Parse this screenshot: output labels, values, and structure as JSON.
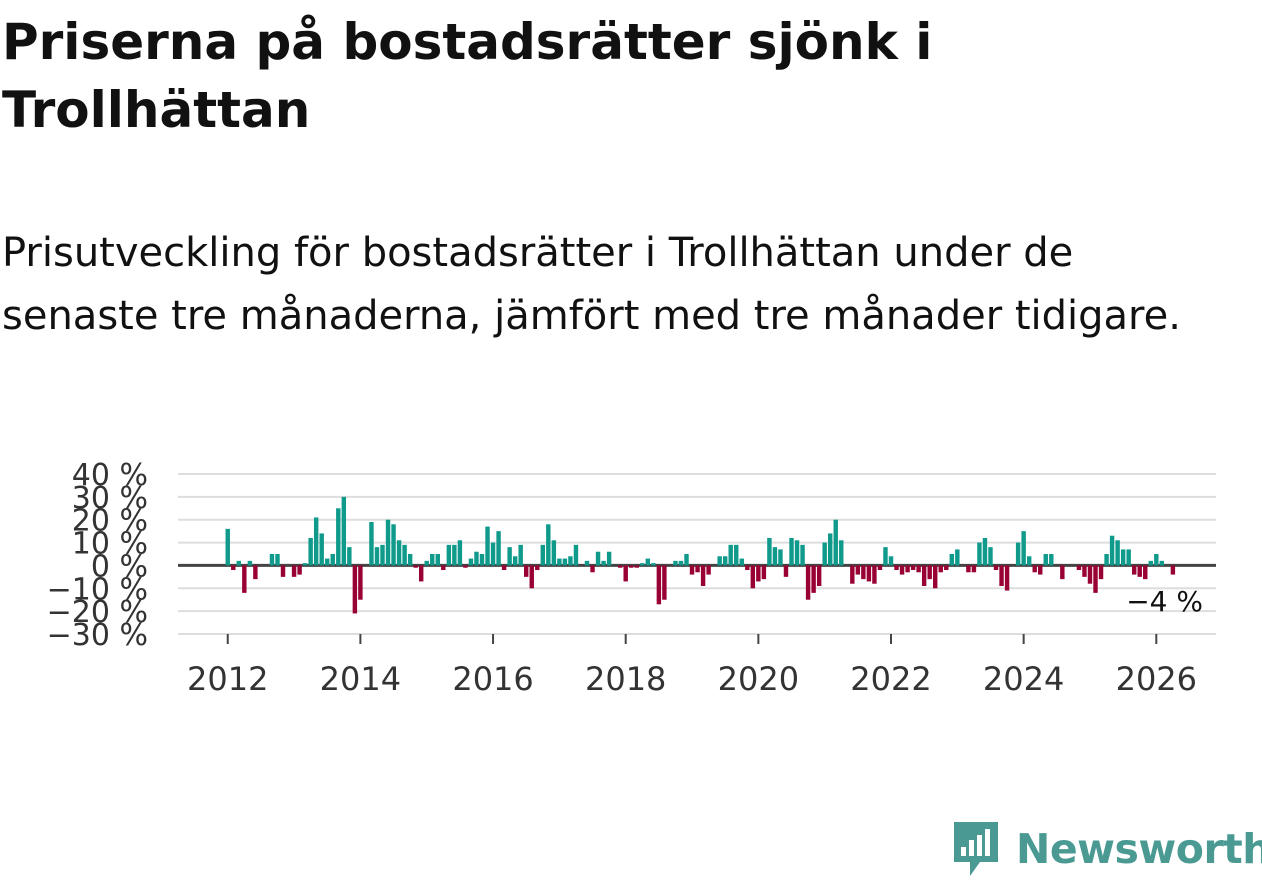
{
  "title": "Priserna på bostadsrätter sjönk i Trollhättan",
  "subtitle": "Prisutveckling för bostadsrätter i Trollhättan under de senaste tre månaderna, jämfört med tre månader tidigare.",
  "brand": {
    "name": "Newsworthy",
    "color": "#4a9a93",
    "icon": "newsworthy-logo-icon"
  },
  "colors": {
    "positive": "#0f9a8c",
    "negative": "#990033",
    "grid": "#dddddd",
    "zero": "#444444",
    "text": "#333333"
  },
  "chart_data": {
    "type": "bar",
    "title": "Priserna på bostadsrätter sjönk i Trollhättan",
    "xlabel": "",
    "ylabel": "",
    "ylim": [
      -30,
      40
    ],
    "y_ticks": [
      40,
      30,
      20,
      10,
      0,
      -10,
      -20,
      -30
    ],
    "y_tick_labels": [
      "40 %",
      "30 %",
      "20 %",
      "10 %",
      "0 %",
      "−10 %",
      "−20 %",
      "−30 %"
    ],
    "x_domain": [
      2011.25,
      2026.9
    ],
    "x_ticks": [
      2012,
      2014,
      2016,
      2018,
      2020,
      2022,
      2024,
      2026
    ],
    "x_tick_labels": [
      "2012",
      "2014",
      "2016",
      "2018",
      "2020",
      "2022",
      "2024",
      "2026"
    ],
    "series_name": "Prisutveckling",
    "start": {
      "year": 2012,
      "month": 1
    },
    "values": [
      16,
      -2,
      2,
      -12,
      2,
      -6,
      0,
      0,
      5,
      5,
      -5,
      0,
      -5,
      -4,
      1,
      12,
      21,
      14,
      3,
      5,
      25,
      30,
      8,
      -21,
      -15,
      0,
      19,
      8,
      9,
      20,
      18,
      11,
      9,
      5,
      -1,
      -7,
      2,
      5,
      5,
      -2,
      9,
      9,
      11,
      -1,
      3,
      6,
      5,
      17,
      10,
      15,
      -2,
      8,
      4,
      9,
      -5,
      -10,
      -2,
      9,
      18,
      11,
      3,
      3,
      4,
      9,
      0,
      2,
      -3,
      6,
      2,
      6,
      0,
      -1,
      -7,
      -1,
      -1,
      1,
      3,
      1,
      -17,
      -15,
      0,
      2,
      2,
      5,
      -4,
      -3,
      -9,
      -4,
      0,
      4,
      4,
      9,
      9,
      3,
      -2,
      -10,
      -7,
      -6,
      12,
      8,
      7,
      -5,
      12,
      11,
      9,
      -15,
      -12,
      -9,
      10,
      14,
      20,
      11,
      0,
      -8,
      -4,
      -6,
      -7,
      -8,
      -2,
      8,
      4,
      -2,
      -4,
      -3,
      -2,
      -3,
      -9,
      -6,
      -10,
      -3,
      -2,
      5,
      7,
      0,
      -3,
      -3,
      10,
      12,
      8,
      -2,
      -9,
      -11,
      0,
      10,
      15,
      4,
      -3,
      -4,
      5,
      5,
      0,
      -6,
      0,
      0,
      -2,
      -5,
      -8,
      -12,
      -6,
      5,
      13,
      11,
      7,
      7,
      -4,
      -5,
      -6,
      2,
      5,
      2,
      0,
      -4
    ]
  },
  "annotation": {
    "label": "−4 %",
    "value": -4
  }
}
